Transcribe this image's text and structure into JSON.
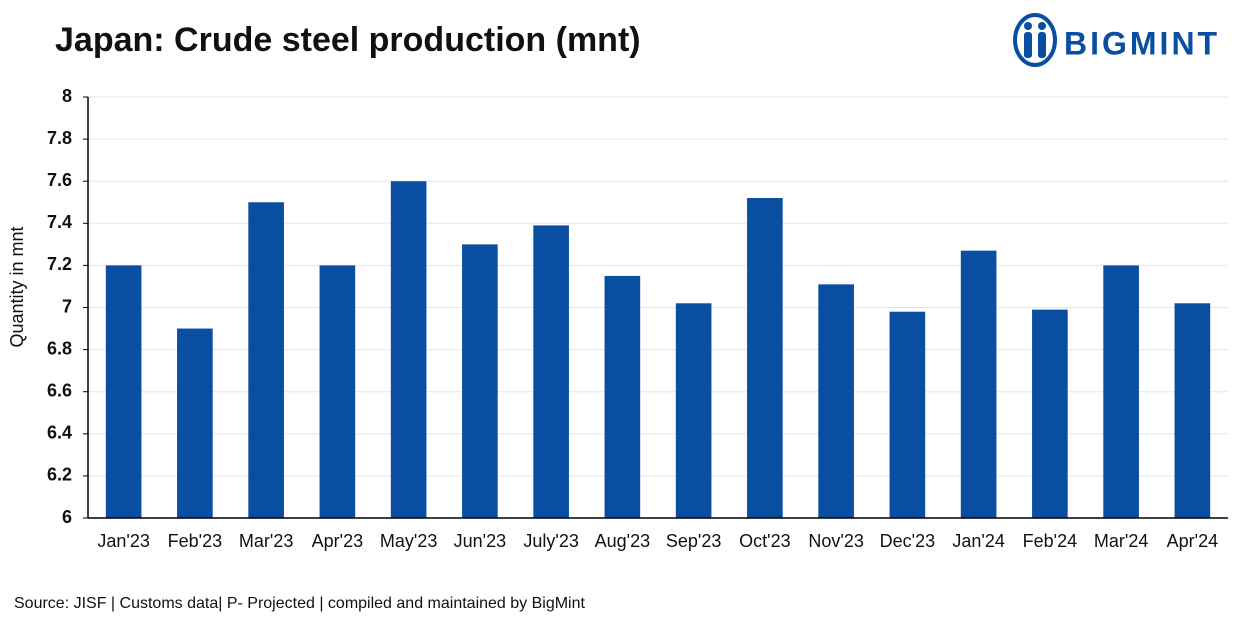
{
  "chart_data": {
    "type": "bar",
    "title": "Japan: Crude steel production (mnt)",
    "y_label": "Quantity in mnt",
    "source": "Source: JISF | Customs data|  P- Projected | compiled and maintained by BigMint",
    "logo": "BIGMINT",
    "categories": [
      "Jan'23",
      "Feb'23",
      "Mar'23",
      "Apr'23",
      "May'23",
      "Jun'23",
      "July'23",
      "Aug'23",
      "Sep'23",
      "Oct'23",
      "Nov'23",
      "Dec'23",
      "Jan'24",
      "Feb'24",
      "Mar'24",
      "Apr'24"
    ],
    "values": [
      7.2,
      6.9,
      7.5,
      7.2,
      7.6,
      7.3,
      7.39,
      7.15,
      7.02,
      7.52,
      7.11,
      6.98,
      7.27,
      6.99,
      7.2,
      7.02
    ],
    "color": "#0a4ea2",
    "ylim": [
      6,
      8
    ],
    "yticks": [
      6,
      6.2,
      6.4,
      6.6,
      6.8,
      7,
      7.2,
      7.4,
      7.6,
      7.8,
      8
    ],
    "grid": true
  }
}
